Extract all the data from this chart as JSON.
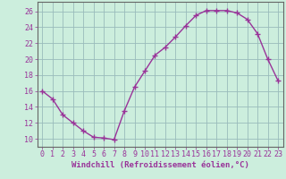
{
  "x": [
    0,
    1,
    2,
    3,
    4,
    5,
    6,
    7,
    8,
    9,
    10,
    11,
    12,
    13,
    14,
    15,
    16,
    17,
    18,
    19,
    20,
    21,
    22,
    23
  ],
  "y": [
    16,
    15,
    13,
    12,
    11,
    10.2,
    10.1,
    9.9,
    13.5,
    16.5,
    18.5,
    20.5,
    21.5,
    22.8,
    24.2,
    25.5,
    26.1,
    26.1,
    26.1,
    25.8,
    25.0,
    23.2,
    20.0,
    17.3
  ],
  "line_color": "#993399",
  "marker": "+",
  "markersize": 4,
  "linewidth": 1.0,
  "bg_color": "#cceedd",
  "plot_bg_color": "#cceedd",
  "grid_color": "#99bbbb",
  "axis_color": "#666666",
  "tick_color": "#993399",
  "xlabel": "Windchill (Refroidissement éolien,°C)",
  "xlabel_fontsize": 6.5,
  "tick_fontsize": 6.0,
  "ytick_values": [
    10,
    12,
    14,
    16,
    18,
    20,
    22,
    24,
    26
  ],
  "ylim": [
    9.0,
    27.2
  ],
  "xlim": [
    -0.5,
    23.5
  ]
}
